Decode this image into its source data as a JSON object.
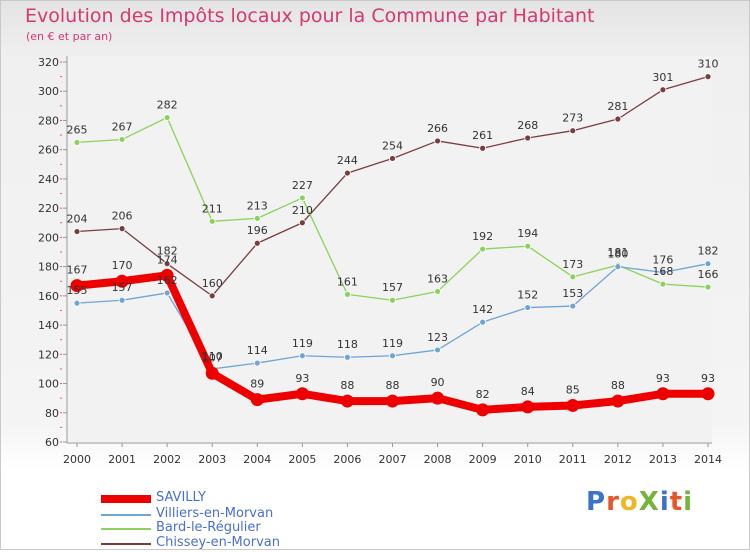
{
  "header": {
    "title": "Evolution des Impôts locaux pour la Commune par Habitant",
    "subtitle": "(en € et par an)"
  },
  "logo": {
    "text": "ProXiti",
    "colors": [
      "#3a73c9",
      "#e9552b",
      "#f2b523",
      "#74b43b",
      "#3a73c9",
      "#e9552b",
      "#74b43b"
    ]
  },
  "chart_data": {
    "type": "line",
    "title": "Evolution des Impôts locaux pour la Commune par Habitant",
    "subtitle": "(en € et par an)",
    "x": [
      "2000",
      "2001",
      "2002",
      "2003",
      "2004",
      "2005",
      "2006",
      "2007",
      "2008",
      "2009",
      "2010",
      "2011",
      "2012",
      "2013",
      "2014"
    ],
    "ylim": [
      60,
      320
    ],
    "yticks": [
      60,
      80,
      100,
      120,
      140,
      160,
      180,
      200,
      220,
      240,
      260,
      280,
      300,
      320
    ],
    "grid": false,
    "legend": "bottom-left",
    "series": [
      {
        "name": "SAVILLY",
        "color": "#ee0000",
        "values": [
          167,
          170,
          174,
          107,
          89,
          93,
          88,
          88,
          90,
          82,
          84,
          85,
          88,
          93,
          93
        ]
      },
      {
        "name": "Villiers-en-Morvan",
        "color": "#6fa4d6",
        "values": [
          155,
          157,
          162,
          110,
          114,
          119,
          118,
          119,
          123,
          142,
          152,
          153,
          180,
          176,
          182
        ]
      },
      {
        "name": "Bard-le-Régulier",
        "color": "#8ad25d",
        "values": [
          265,
          267,
          282,
          211,
          213,
          227,
          161,
          157,
          163,
          192,
          194,
          173,
          181,
          168,
          166
        ]
      },
      {
        "name": "Chissey-en-Morvan",
        "color": "#7a3d3d",
        "values": [
          204,
          206,
          182,
          160,
          196,
          210,
          244,
          254,
          266,
          261,
          268,
          273,
          281,
          301,
          310
        ]
      }
    ]
  }
}
